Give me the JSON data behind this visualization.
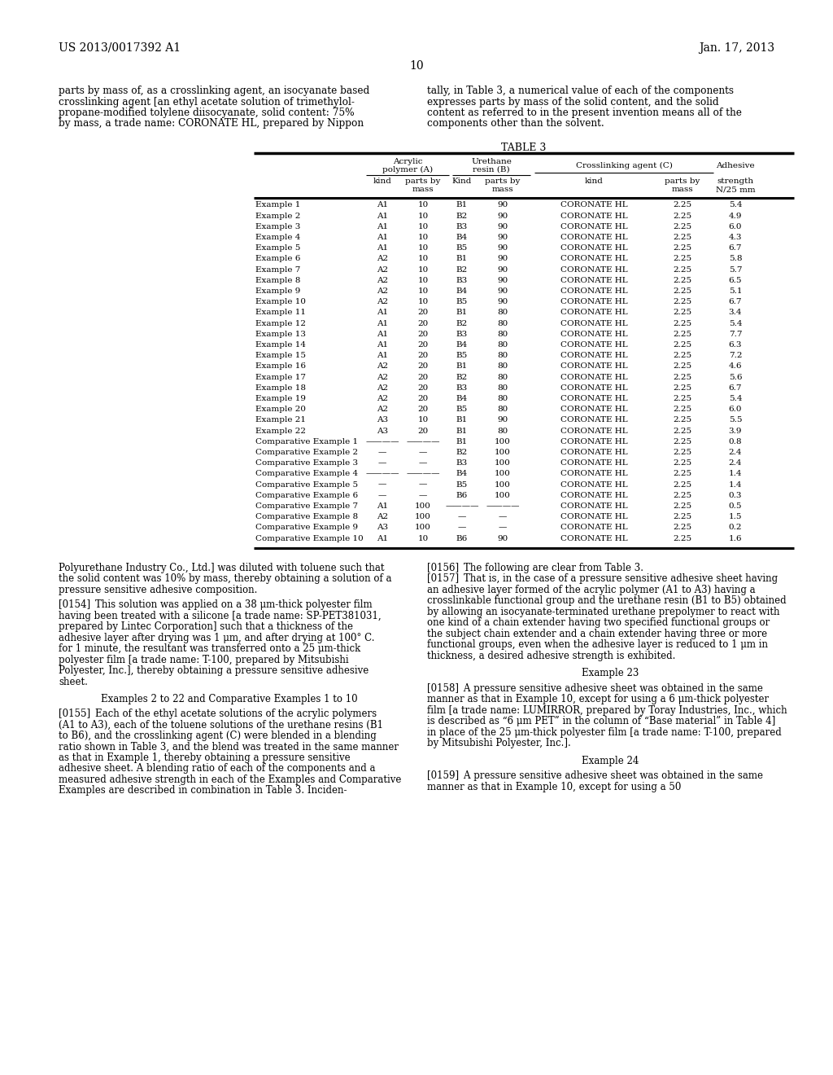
{
  "page_header_left": "US 2013/0017392 A1",
  "page_header_right": "Jan. 17, 2013",
  "page_number": "10",
  "left_column_text": [
    "parts by mass of, as a crosslinking agent, an isocyanate based",
    "crosslinking agent [an ethyl acetate solution of trimethylol-",
    "propane-modified tolylene diisocyanate, solid content: 75%",
    "by mass, a trade name: CORONATE HL, prepared by Nippon"
  ],
  "right_column_text": [
    "tally, in Table 3, a numerical value of each of the components",
    "expresses parts by mass of the solid content, and the solid",
    "content as referred to in the present invention means all of the",
    "components other than the solvent."
  ],
  "table_title": "TABLE 3",
  "table_data": [
    [
      "Example 1",
      "A1",
      "10",
      "B1",
      "90",
      "CORONATE HL",
      "2.25",
      "5.4"
    ],
    [
      "Example 2",
      "A1",
      "10",
      "B2",
      "90",
      "CORONATE HL",
      "2.25",
      "4.9"
    ],
    [
      "Example 3",
      "A1",
      "10",
      "B3",
      "90",
      "CORONATE HL",
      "2.25",
      "6.0"
    ],
    [
      "Example 4",
      "A1",
      "10",
      "B4",
      "90",
      "CORONATE HL",
      "2.25",
      "4.3"
    ],
    [
      "Example 5",
      "A1",
      "10",
      "B5",
      "90",
      "CORONATE HL",
      "2.25",
      "6.7"
    ],
    [
      "Example 6",
      "A2",
      "10",
      "B1",
      "90",
      "CORONATE HL",
      "2.25",
      "5.8"
    ],
    [
      "Example 7",
      "A2",
      "10",
      "B2",
      "90",
      "CORONATE HL",
      "2.25",
      "5.7"
    ],
    [
      "Example 8",
      "A2",
      "10",
      "B3",
      "90",
      "CORONATE HL",
      "2.25",
      "6.5"
    ],
    [
      "Example 9",
      "A2",
      "10",
      "B4",
      "90",
      "CORONATE HL",
      "2.25",
      "5.1"
    ],
    [
      "Example 10",
      "A2",
      "10",
      "B5",
      "90",
      "CORONATE HL",
      "2.25",
      "6.7"
    ],
    [
      "Example 11",
      "A1",
      "20",
      "B1",
      "80",
      "CORONATE HL",
      "2.25",
      "3.4"
    ],
    [
      "Example 12",
      "A1",
      "20",
      "B2",
      "80",
      "CORONATE HL",
      "2.25",
      "5.4"
    ],
    [
      "Example 13",
      "A1",
      "20",
      "B3",
      "80",
      "CORONATE HL",
      "2.25",
      "7.7"
    ],
    [
      "Example 14",
      "A1",
      "20",
      "B4",
      "80",
      "CORONATE HL",
      "2.25",
      "6.3"
    ],
    [
      "Example 15",
      "A1",
      "20",
      "B5",
      "80",
      "CORONATE HL",
      "2.25",
      "7.2"
    ],
    [
      "Example 16",
      "A2",
      "20",
      "B1",
      "80",
      "CORONATE HL",
      "2.25",
      "4.6"
    ],
    [
      "Example 17",
      "A2",
      "20",
      "B2",
      "80",
      "CORONATE HL",
      "2.25",
      "5.6"
    ],
    [
      "Example 18",
      "A2",
      "20",
      "B3",
      "80",
      "CORONATE HL",
      "2.25",
      "6.7"
    ],
    [
      "Example 19",
      "A2",
      "20",
      "B4",
      "80",
      "CORONATE HL",
      "2.25",
      "5.4"
    ],
    [
      "Example 20",
      "A2",
      "20",
      "B5",
      "80",
      "CORONATE HL",
      "2.25",
      "6.0"
    ],
    [
      "Example 21",
      "A3",
      "10",
      "B1",
      "90",
      "CORONATE HL",
      "2.25",
      "5.5"
    ],
    [
      "Example 22",
      "A3",
      "20",
      "B1",
      "80",
      "CORONATE HL",
      "2.25",
      "3.9"
    ],
    [
      "Comparative Example 1",
      "————",
      "————",
      "B1",
      "100",
      "CORONATE HL",
      "2.25",
      "0.8"
    ],
    [
      "Comparative Example 2",
      "—",
      "—",
      "B2",
      "100",
      "CORONATE HL",
      "2.25",
      "2.4"
    ],
    [
      "Comparative Example 3",
      "—",
      "—",
      "B3",
      "100",
      "CORONATE HL",
      "2.25",
      "2.4"
    ],
    [
      "Comparative Example 4",
      "————",
      "————",
      "B4",
      "100",
      "CORONATE HL",
      "2.25",
      "1.4"
    ],
    [
      "Comparative Example 5",
      "—",
      "—",
      "B5",
      "100",
      "CORONATE HL",
      "2.25",
      "1.4"
    ],
    [
      "Comparative Example 6",
      "—",
      "—",
      "B6",
      "100",
      "CORONATE HL",
      "2.25",
      "0.3"
    ],
    [
      "Comparative Example 7",
      "A1",
      "100",
      "————",
      "————",
      "CORONATE HL",
      "2.25",
      "0.5"
    ],
    [
      "Comparative Example 8",
      "A2",
      "100",
      "—",
      "—",
      "CORONATE HL",
      "2.25",
      "1.5"
    ],
    [
      "Comparative Example 9",
      "A3",
      "100",
      "—",
      "—",
      "CORONATE HL",
      "2.25",
      "0.2"
    ],
    [
      "Comparative Example 10",
      "A1",
      "10",
      "B6",
      "90",
      "CORONATE HL",
      "2.25",
      "1.6"
    ]
  ],
  "para_left_top": "Polyurethane Industry Co., Ltd.] was diluted with toluene such that the solid content was 10% by mass, thereby obtaining a solution of a pressure sensitive adhesive composition.",
  "para0154": "[0154] This solution was applied on a 38 μm-thick polyester film having been treated with a silicone [a trade name: SP-PET381031, prepared by Lintec Corporation] such that a thickness of the adhesive layer after drying was 1 μm, and after drying at 100° C. for 1 minute, the resultant was transferred onto a 25 μm-thick polyester film [a trade name: T-100, prepared by Mitsubishi Polyester, Inc.], thereby obtaining a pressure sensitive adhesive sheet.",
  "heading_examples": "Examples 2 to 22 and Comparative Examples 1 to 10",
  "para0155": "[0155] Each of the ethyl acetate solutions of the acrylic polymers (A1 to A3), each of the toluene solutions of the urethane resins (B1 to B6), and the crosslinking agent (C) were blended in a blending ratio shown in Table 3, and the blend was treated in the same manner as that in Example 1, thereby obtaining a pressure sensitive adhesive sheet. A blending ratio of each of the components and a measured adhesive strength in each of the Examples and Comparative Examples are described in combination in Table 3. Inciden-",
  "para0156": "[0156] The following are clear from Table 3.",
  "para0157": "[0157] That is, in the case of a pressure sensitive adhesive sheet having an adhesive layer formed of the acrylic polymer (A1 to A3) having a crosslinkable functional group and the urethane resin (B1 to B5) obtained by allowing an isocyanate-terminated urethane prepolymer to react with one kind of a chain extender having two specified functional groups or the subject chain extender and a chain extender having three or more functional groups, even when the adhesive layer is reduced to 1 μm in thickness, a desired adhesive strength is exhibited.",
  "heading_ex23": "Example 23",
  "para0158": "[0158] A pressure sensitive adhesive sheet was obtained in the same manner as that in Example 10, except for using a 6 μm-thick polyester film [a trade name: LUMIRROR, prepared by Toray Industries, Inc., which is described as “6 μm PET” in the column of “Base material” in Table 4] in place of the 25 μm-thick polyester film [a trade name: T-100, prepared by Mitsubishi Polyester, Inc.].",
  "heading_ex24": "Example 24",
  "para0159": "[0159] A pressure sensitive adhesive sheet was obtained in the same manner as that in Example 10, except for using a 50",
  "bg_color": "#ffffff",
  "text_color": "#000000"
}
